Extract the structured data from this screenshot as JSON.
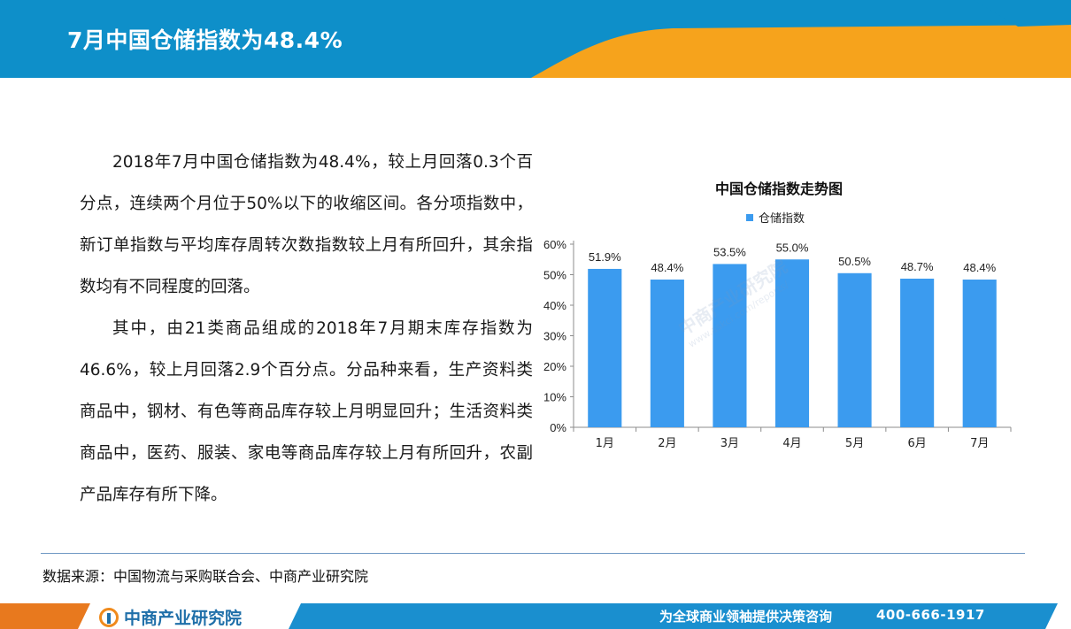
{
  "header": {
    "title": "7月中国仓储指数为48.4%",
    "colors": {
      "blue": "#0e8fc9",
      "orange": "#f6a31c"
    }
  },
  "body": {
    "paragraph1": "2018年7月中国仓储指数为48.4%，较上月回落0.3个百分点，连续两个月位于50%以下的收缩区间。各分项指数中，新订单指数与平均库存周转次数指数较上月有所回升，其余指数均有不同程度的回落。",
    "paragraph2": "其中，由21类商品组成的2018年7月期末库存指数为46.6%，较上月回落2.9个百分点。分品种来看，生产资料类商品中，钢材、有色等商品库存较上月明显回升；生活资料类商品中，医药、服装、家电等商品库存较上月有所回升，农副产品库存有所下降。"
  },
  "chart_data": {
    "type": "bar",
    "title": "中国仓储指数走势图",
    "categories": [
      "1月",
      "2月",
      "3月",
      "4月",
      "5月",
      "6月",
      "7月"
    ],
    "series": [
      {
        "name": "仓储指数",
        "values": [
          51.9,
          48.4,
          53.5,
          55.0,
          50.5,
          48.7,
          48.4
        ],
        "color": "#3b9bef"
      }
    ],
    "data_labels": [
      "51.9%",
      "48.4%",
      "53.5%",
      "55.0%",
      "50.5%",
      "48.7%",
      "48.4%"
    ],
    "yticks": [
      "0%",
      "10%",
      "20%",
      "30%",
      "40%",
      "50%",
      "60%"
    ],
    "ylim": [
      0,
      60
    ],
    "legend_position": "top-center",
    "grid": false
  },
  "watermark": {
    "text": "中商产业研究院",
    "url": "www.askci.com/reports/"
  },
  "source": {
    "text": "数据来源：中国物流与采购联合会、中商产业研究院"
  },
  "footer": {
    "logo_text": "中商产业研究院",
    "slogan": "为全球商业领袖提供决策咨询",
    "phone": "400-666-1917",
    "colors": {
      "orange": "#e8791e",
      "blue": "#1a8fcf"
    }
  }
}
